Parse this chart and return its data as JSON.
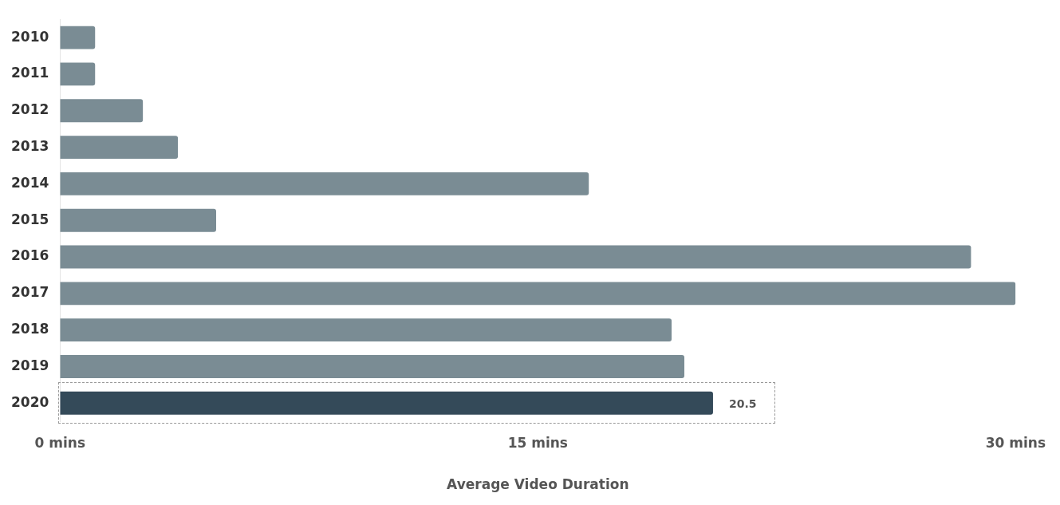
{
  "chart_data": {
    "type": "bar",
    "orientation": "horizontal",
    "xlabel": "Average Video Duration",
    "categories": [
      "2010",
      "2011",
      "2012",
      "2013",
      "2014",
      "2015",
      "2016",
      "2017",
      "2018",
      "2019",
      "2020"
    ],
    "values": [
      1.1,
      1.1,
      2.6,
      3.7,
      16.6,
      4.9,
      28.6,
      30,
      19.2,
      19.6,
      20.5
    ],
    "colors": [
      "#7a8c94",
      "#7a8c94",
      "#7a8c94",
      "#7a8c94",
      "#7a8c94",
      "#7a8c94",
      "#7a8c94",
      "#7a8c94",
      "#7a8c94",
      "#7a8c94",
      "#344a59"
    ],
    "value_labels": [
      null,
      null,
      null,
      null,
      null,
      null,
      null,
      null,
      null,
      null,
      "20.5"
    ],
    "xlim": [
      0,
      30
    ],
    "xticks": [
      {
        "value": 0,
        "label": "0 mins"
      },
      {
        "value": 15,
        "label": "15 mins"
      },
      {
        "value": 30,
        "label": "30 mins"
      }
    ],
    "grid": false,
    "legend": false
  }
}
